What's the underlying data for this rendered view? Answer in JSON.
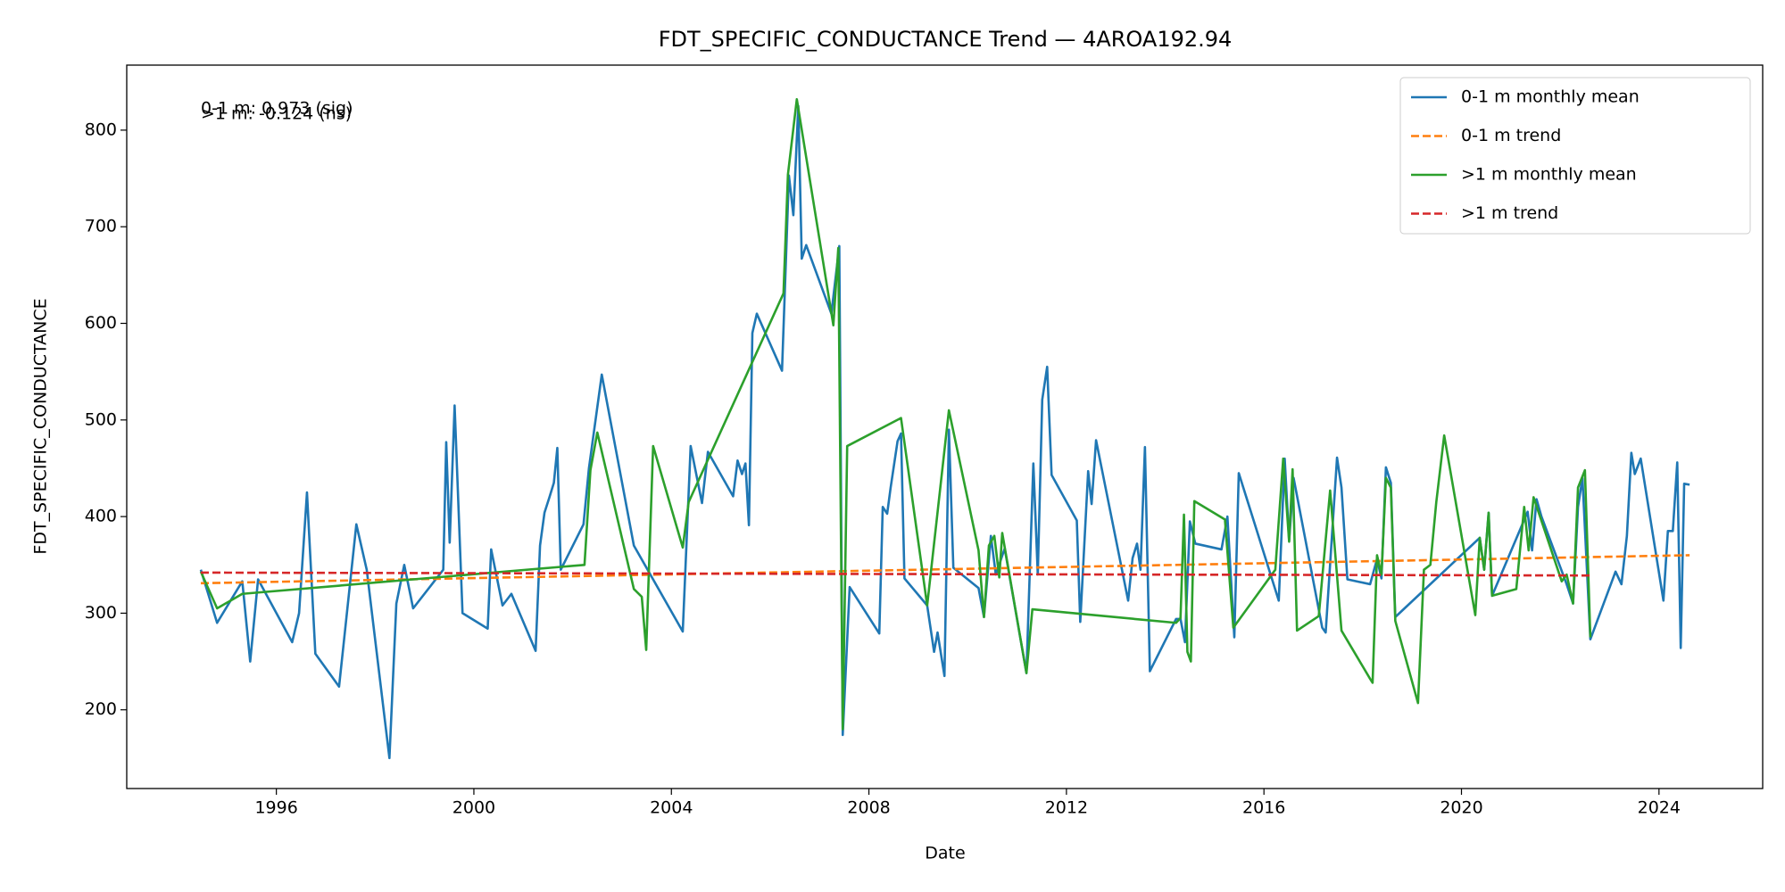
{
  "chart_data": {
    "type": "line",
    "title": "FDT_SPECIFIC_CONDUCTANCE Trend — 4AROA192.94",
    "x_label": "Date",
    "y_label": "FDT_SPECIFIC_CONDUCTANCE",
    "annotations": [
      "0-1 m: 0.973 (sig)",
      ">1 m: -0.124 (ns)"
    ],
    "xlim": [
      1992.97,
      2026.1
    ],
    "xticks": [
      1996,
      2000,
      2004,
      2008,
      2012,
      2016,
      2020,
      2024
    ],
    "ylim": [
      118.5,
      867.3
    ],
    "yticks": [
      200,
      300,
      400,
      500,
      600,
      700,
      800
    ],
    "legend": "upper right",
    "series": [
      {
        "name": "0-1 m monthly mean",
        "color": "#1f77b4",
        "linestyle": "solid",
        "x": [
          1994.47,
          1994.8,
          1995.31,
          1995.47,
          1995.63,
          1996.32,
          1996.46,
          1996.62,
          1996.79,
          1997.27,
          1997.62,
          1997.83,
          1998.29,
          1998.43,
          1998.59,
          1998.77,
          1999.38,
          1999.44,
          1999.51,
          1999.61,
          1999.77,
          2000.28,
          2000.35,
          2000.58,
          2000.76,
          2001.25,
          2001.34,
          2001.43,
          2001.53,
          2001.62,
          2001.69,
          2001.76,
          2002.22,
          2002.33,
          2002.59,
          2003.24,
          2004.23,
          2004.39,
          2004.62,
          2004.74,
          2005.25,
          2005.34,
          2005.43,
          2005.5,
          2005.57,
          2005.64,
          2005.73,
          2006.24,
          2006.38,
          2006.47,
          2006.57,
          2006.64,
          2006.73,
          2007.24,
          2007.4,
          2007.47,
          2007.61,
          2008.21,
          2008.28,
          2008.37,
          2008.44,
          2008.58,
          2008.65,
          2008.72,
          2009.18,
          2009.32,
          2009.39,
          2009.53,
          2009.62,
          2009.71,
          2010.22,
          2010.33,
          2010.47,
          2010.57,
          2010.75,
          2011.19,
          2011.33,
          2011.42,
          2011.51,
          2011.61,
          2011.7,
          2012.21,
          2012.28,
          2012.44,
          2012.51,
          2012.6,
          2013.25,
          2013.34,
          2013.43,
          2013.5,
          2013.59,
          2013.69,
          2014.22,
          2014.31,
          2014.4,
          2014.5,
          2014.61,
          2015.14,
          2015.26,
          2015.4,
          2015.49,
          2016.3,
          2016.42,
          2016.51,
          2016.6,
          2017.18,
          2017.25,
          2017.48,
          2017.57,
          2017.69,
          2018.15,
          2018.29,
          2018.38,
          2018.47,
          2018.57,
          2018.66,
          2020.37,
          2020.46,
          2020.55,
          2020.62,
          2021.34,
          2021.43,
          2021.52,
          2021.62,
          2022.13,
          2022.26,
          2022.36,
          2022.45,
          2022.61,
          2023.12,
          2023.24,
          2023.35,
          2023.44,
          2023.51,
          2023.63,
          2024.09,
          2024.18,
          2024.28,
          2024.37,
          2024.44,
          2024.51,
          2024.62
        ],
        "values": [
          345,
          290,
          333,
          250,
          335,
          270,
          300,
          425,
          258,
          224,
          392,
          345,
          150,
          310,
          350,
          305,
          345,
          477,
          373,
          515,
          300,
          284,
          366,
          308,
          320,
          261,
          370,
          404,
          420,
          435,
          471,
          345,
          392,
          450,
          547,
          370,
          281,
          473,
          414,
          467,
          421,
          458,
          444,
          455,
          391,
          590,
          610,
          551,
          753,
          712,
          825,
          667,
          681,
          610,
          680,
          174,
          327,
          279,
          410,
          403,
          430,
          478,
          486,
          336,
          308,
          260,
          280,
          235,
          490,
          347,
          326,
          296,
          380,
          340,
          367,
          238,
          455,
          340,
          521,
          555,
          443,
          396,
          291,
          447,
          413,
          479,
          313,
          357,
          372,
          345,
          472,
          240,
          294,
          294,
          270,
          395,
          372,
          366,
          400,
          275,
          445,
          313,
          460,
          375,
          440,
          285,
          280,
          461,
          430,
          335,
          330,
          356,
          336,
          451,
          435,
          296,
          378,
          345,
          404,
          318,
          405,
          365,
          418,
          400,
          330,
          310,
          410,
          440,
          273,
          343,
          330,
          380,
          466,
          444,
          460,
          313,
          385,
          385,
          456,
          264,
          434,
          433
        ]
      },
      {
        "name": "0-1 m trend",
        "color": "#ff7f0e",
        "linestyle": "dashed",
        "x": [
          1994.47,
          2024.62
        ],
        "values": [
          331,
          360
        ]
      },
      {
        "name": ">1 m monthly mean",
        "color": "#2ca02c",
        "linestyle": "solid",
        "x": [
          1994.47,
          1994.8,
          1995.31,
          2002.24,
          2002.36,
          2002.5,
          2003.24,
          2003.4,
          2003.49,
          2003.63,
          2004.23,
          2004.35,
          2006.27,
          2006.36,
          2006.54,
          2007.28,
          2007.38,
          2007.47,
          2007.56,
          2008.65,
          2009.18,
          2009.62,
          2010.22,
          2010.33,
          2010.43,
          2010.54,
          2010.64,
          2010.7,
          2011.19,
          2011.31,
          2014.22,
          2014.31,
          2014.38,
          2014.45,
          2014.52,
          2014.59,
          2015.21,
          2015.38,
          2016.23,
          2016.39,
          2016.51,
          2016.58,
          2016.67,
          2017.11,
          2017.34,
          2017.57,
          2018.15,
          2018.2,
          2018.29,
          2018.38,
          2018.47,
          2018.57,
          2018.66,
          2019.12,
          2019.24,
          2019.37,
          2019.49,
          2019.65,
          2020.28,
          2020.37,
          2020.46,
          2020.55,
          2020.62,
          2021.11,
          2021.27,
          2021.36,
          2021.46,
          2022.03,
          2022.13,
          2022.26,
          2022.36,
          2022.5,
          2022.61
        ],
        "values": [
          343,
          305,
          320,
          350,
          448,
          487,
          325,
          317,
          262,
          473,
          368,
          415,
          631,
          754,
          832,
          598,
          678,
          180,
          473,
          502,
          308,
          510,
          365,
          296,
          370,
          380,
          337,
          383,
          238,
          304,
          290,
          295,
          402,
          260,
          250,
          416,
          397,
          285,
          345,
          460,
          374,
          449,
          282,
          297,
          427,
          282,
          232,
          228,
          360,
          340,
          440,
          430,
          292,
          207,
          345,
          350,
          415,
          484,
          298,
          378,
          345,
          404,
          318,
          325,
          410,
          365,
          420,
          333,
          340,
          310,
          430,
          448,
          275
        ]
      },
      {
        "name": ">1 m trend",
        "color": "#d62728",
        "linestyle": "dashed",
        "x": [
          1994.47,
          2022.61
        ],
        "values": [
          342,
          339
        ]
      }
    ]
  }
}
